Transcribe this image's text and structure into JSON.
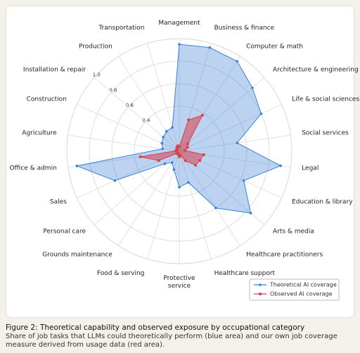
{
  "chart_data": {
    "type": "radar",
    "title": "Figure 2: Theoretical capability and observed exposure by occupational category",
    "subtitle": "Share of job tasks that LLMs could theoretically perform (blue area) and our own job coverage measure derived from usage data (red area).",
    "categories": [
      "Management",
      "Business & finance",
      "Computer & math",
      "Architecture & engineering",
      "Life & social sciences",
      "Social services",
      "Legal",
      "Education & library",
      "Arts & media",
      "Healthcare practitioners",
      "Healthcare support",
      "Protective service",
      "Food & serving",
      "Grounds maintenance",
      "Personal care",
      "Sales",
      "Office & admin",
      "Agriculture",
      "Construction",
      "Installation & repair",
      "Production",
      "Transportation"
    ],
    "series": [
      {
        "name": "Theoretical AI coverage",
        "color": "#3b82d6",
        "values": [
          0.95,
          0.96,
          0.95,
          0.86,
          0.8,
          0.52,
          0.91,
          0.63,
          0.84,
          0.6,
          0.29,
          0.32,
          0.17,
          0.12,
          0.17,
          0.63,
          0.92,
          0.15,
          0.17,
          0.19,
          0.21,
          0.22
        ]
      },
      {
        "name": "Observed AI coverage",
        "color": "#d9404a",
        "values": [
          0.04,
          0.29,
          0.38,
          0.1,
          0.08,
          0.05,
          0.22,
          0.2,
          0.19,
          0.1,
          0.04,
          0.05,
          0.03,
          0.02,
          0.03,
          0.2,
          0.35,
          0.03,
          0.02,
          0.03,
          0.04,
          0.05
        ]
      }
    ],
    "ylim": [
      0,
      1
    ],
    "yticks": [
      0.4,
      0.6,
      0.8,
      {
        "value": 1,
        "label": "1.0"
      }
    ],
    "legend": "lower-right"
  }
}
